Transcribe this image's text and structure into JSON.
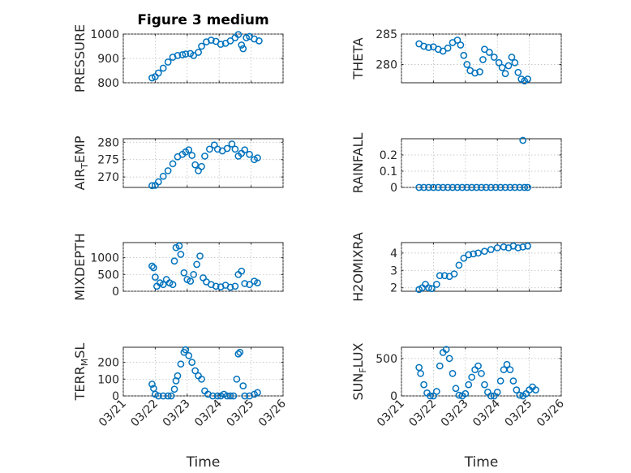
{
  "title": "Figure 3 medium",
  "colors": {
    "marker": "#0072BD",
    "axis": "#262626",
    "grid": "#b8b8b8"
  },
  "chart_data": [
    {
      "id": "pressure",
      "type": "scatter",
      "title": "Figure 3 medium",
      "ylabel": {
        "main": "PRESSURE",
        "sub": "",
        "tail": ""
      },
      "xlabel": "",
      "ylim": [
        800,
        1000
      ],
      "yticks": [
        800,
        900,
        1000
      ],
      "yticklabels": [
        "800",
        "900",
        "1000"
      ],
      "xlim": [
        0,
        5
      ],
      "xticks": [
        0,
        1,
        2,
        3,
        4,
        5
      ],
      "xticklabels": [],
      "grid": true,
      "points": [
        [
          0.9,
          820
        ],
        [
          1.0,
          825
        ],
        [
          1.1,
          840
        ],
        [
          1.25,
          860
        ],
        [
          1.4,
          885
        ],
        [
          1.55,
          905
        ],
        [
          1.7,
          912
        ],
        [
          1.85,
          915
        ],
        [
          1.95,
          918
        ],
        [
          2.1,
          920
        ],
        [
          2.2,
          912
        ],
        [
          2.35,
          925
        ],
        [
          2.45,
          950
        ],
        [
          2.6,
          968
        ],
        [
          2.75,
          975
        ],
        [
          2.9,
          970
        ],
        [
          3.05,
          958
        ],
        [
          3.2,
          962
        ],
        [
          3.35,
          972
        ],
        [
          3.5,
          985
        ],
        [
          3.6,
          998
        ],
        [
          3.7,
          955
        ],
        [
          3.75,
          940
        ],
        [
          3.85,
          985
        ],
        [
          3.95,
          990
        ],
        [
          4.1,
          980
        ],
        [
          4.25,
          972
        ]
      ]
    },
    {
      "id": "theta",
      "type": "scatter",
      "title": "",
      "ylabel": {
        "main": "THETA",
        "sub": "",
        "tail": ""
      },
      "xlabel": "",
      "ylim": [
        277,
        285
      ],
      "yticks": [
        280,
        285
      ],
      "yticklabels": [
        "280",
        "285"
      ],
      "xlim": [
        0,
        5
      ],
      "xticks": [
        0,
        1,
        2,
        3,
        4,
        5
      ],
      "xticklabels": [],
      "grid": true,
      "points": [
        [
          0.55,
          283.4
        ],
        [
          0.7,
          283.0
        ],
        [
          0.85,
          282.8
        ],
        [
          1.0,
          282.9
        ],
        [
          1.15,
          282.5
        ],
        [
          1.3,
          282.2
        ],
        [
          1.45,
          282.7
        ],
        [
          1.6,
          283.6
        ],
        [
          1.75,
          284.0
        ],
        [
          1.85,
          283.2
        ],
        [
          1.95,
          281.5
        ],
        [
          2.05,
          280.0
        ],
        [
          2.15,
          279.0
        ],
        [
          2.3,
          278.6
        ],
        [
          2.45,
          278.8
        ],
        [
          2.55,
          280.8
        ],
        [
          2.6,
          282.5
        ],
        [
          2.75,
          282.0
        ],
        [
          2.9,
          281.2
        ],
        [
          3.05,
          280.3
        ],
        [
          3.15,
          279.5
        ],
        [
          3.25,
          278.5
        ],
        [
          3.35,
          279.8
        ],
        [
          3.45,
          281.2
        ],
        [
          3.55,
          280.3
        ],
        [
          3.65,
          278.7
        ],
        [
          3.75,
          277.6
        ],
        [
          3.85,
          277.3
        ],
        [
          3.95,
          277.6
        ]
      ]
    },
    {
      "id": "air-temp",
      "type": "scatter",
      "title": "",
      "ylabel": {
        "main": "AIR",
        "sub": "T",
        "tail": "EMP"
      },
      "xlabel": "",
      "ylim": [
        267,
        281
      ],
      "yticks": [
        270,
        275,
        280
      ],
      "yticklabels": [
        "270",
        "275",
        "280"
      ],
      "xlim": [
        0,
        5
      ],
      "xticks": [
        0,
        1,
        2,
        3,
        4,
        5
      ],
      "xticklabels": [],
      "grid": true,
      "points": [
        [
          0.9,
          267.5
        ],
        [
          1.0,
          267.6
        ],
        [
          1.1,
          268.6
        ],
        [
          1.25,
          270.2
        ],
        [
          1.4,
          271.8
        ],
        [
          1.55,
          273.8
        ],
        [
          1.7,
          275.8
        ],
        [
          1.85,
          276.5
        ],
        [
          1.95,
          277.2
        ],
        [
          2.05,
          277.8
        ],
        [
          2.15,
          276.2
        ],
        [
          2.25,
          273.5
        ],
        [
          2.35,
          271.8
        ],
        [
          2.45,
          273.0
        ],
        [
          2.55,
          276.0
        ],
        [
          2.7,
          278.0
        ],
        [
          2.85,
          279.2
        ],
        [
          2.95,
          278.0
        ],
        [
          3.1,
          277.5
        ],
        [
          3.25,
          278.2
        ],
        [
          3.4,
          279.5
        ],
        [
          3.5,
          278.0
        ],
        [
          3.6,
          276.0
        ],
        [
          3.7,
          276.8
        ],
        [
          3.8,
          277.8
        ],
        [
          3.95,
          276.5
        ],
        [
          4.1,
          275.0
        ],
        [
          4.2,
          275.5
        ]
      ]
    },
    {
      "id": "rainfall",
      "type": "scatter",
      "title": "",
      "ylabel": {
        "main": "RAINFALL",
        "sub": "",
        "tail": ""
      },
      "xlabel": "",
      "ylim": [
        0,
        0.3
      ],
      "yticks": [
        0,
        0.1,
        0.2
      ],
      "yticklabels": [
        "0",
        "0.1",
        "0.2"
      ],
      "xlim": [
        0,
        5
      ],
      "xticks": [
        0,
        1,
        2,
        3,
        4,
        5
      ],
      "xticklabels": [],
      "grid": true,
      "points": [
        [
          0.55,
          0
        ],
        [
          0.7,
          0
        ],
        [
          0.85,
          0
        ],
        [
          1.0,
          0
        ],
        [
          1.15,
          0
        ],
        [
          1.3,
          0
        ],
        [
          1.45,
          0
        ],
        [
          1.6,
          0
        ],
        [
          1.75,
          0
        ],
        [
          1.9,
          0
        ],
        [
          2.05,
          0
        ],
        [
          2.2,
          0
        ],
        [
          2.35,
          0
        ],
        [
          2.5,
          0
        ],
        [
          2.65,
          0
        ],
        [
          2.8,
          0
        ],
        [
          2.95,
          0
        ],
        [
          3.1,
          0
        ],
        [
          3.25,
          0
        ],
        [
          3.4,
          0
        ],
        [
          3.55,
          0
        ],
        [
          3.7,
          0
        ],
        [
          3.8,
          0.29
        ],
        [
          3.85,
          0
        ],
        [
          3.95,
          0
        ]
      ]
    },
    {
      "id": "mixdepth",
      "type": "scatter",
      "title": "",
      "ylabel": {
        "main": "MIXDEPTH",
        "sub": "",
        "tail": ""
      },
      "xlabel": "",
      "ylim": [
        0,
        1450
      ],
      "yticks": [
        0,
        500,
        1000
      ],
      "yticklabels": [
        "0",
        "500",
        "1000"
      ],
      "xlim": [
        0,
        5
      ],
      "xticks": [
        0,
        1,
        2,
        3,
        4,
        5
      ],
      "xticklabels": [],
      "grid": true,
      "points": [
        [
          0.9,
          750
        ],
        [
          0.95,
          700
        ],
        [
          1.0,
          420
        ],
        [
          1.05,
          150
        ],
        [
          1.15,
          250
        ],
        [
          1.25,
          200
        ],
        [
          1.35,
          350
        ],
        [
          1.45,
          250
        ],
        [
          1.55,
          200
        ],
        [
          1.6,
          900
        ],
        [
          1.65,
          1300
        ],
        [
          1.75,
          1350
        ],
        [
          1.8,
          1100
        ],
        [
          1.9,
          550
        ],
        [
          2.0,
          350
        ],
        [
          2.1,
          300
        ],
        [
          2.2,
          500
        ],
        [
          2.3,
          800
        ],
        [
          2.4,
          1050
        ],
        [
          2.5,
          400
        ],
        [
          2.6,
          280
        ],
        [
          2.75,
          200
        ],
        [
          2.9,
          150
        ],
        [
          3.05,
          130
        ],
        [
          3.2,
          180
        ],
        [
          3.35,
          120
        ],
        [
          3.5,
          150
        ],
        [
          3.6,
          500
        ],
        [
          3.7,
          600
        ],
        [
          3.8,
          230
        ],
        [
          3.95,
          200
        ],
        [
          4.1,
          300
        ],
        [
          4.2,
          250
        ]
      ]
    },
    {
      "id": "h2omixra",
      "type": "scatter",
      "title": "",
      "ylabel": {
        "main": "H2OMIXRA",
        "sub": "",
        "tail": ""
      },
      "xlabel": "",
      "ylim": [
        1.8,
        4.6
      ],
      "yticks": [
        2,
        3,
        4
      ],
      "yticklabels": [
        "2",
        "3",
        "4"
      ],
      "xlim": [
        0,
        5
      ],
      "xticks": [
        0,
        1,
        2,
        3,
        4,
        5
      ],
      "xticklabels": [],
      "grid": true,
      "points": [
        [
          0.55,
          1.9
        ],
        [
          0.65,
          2.0
        ],
        [
          0.75,
          2.2
        ],
        [
          0.85,
          2.0
        ],
        [
          0.95,
          1.95
        ],
        [
          1.1,
          2.2
        ],
        [
          1.2,
          2.7
        ],
        [
          1.35,
          2.7
        ],
        [
          1.5,
          2.65
        ],
        [
          1.65,
          2.8
        ],
        [
          1.8,
          3.3
        ],
        [
          1.95,
          3.7
        ],
        [
          2.1,
          3.9
        ],
        [
          2.25,
          3.95
        ],
        [
          2.4,
          4.0
        ],
        [
          2.6,
          4.1
        ],
        [
          2.8,
          4.2
        ],
        [
          3.0,
          4.3
        ],
        [
          3.2,
          4.35
        ],
        [
          3.35,
          4.3
        ],
        [
          3.5,
          4.4
        ],
        [
          3.65,
          4.3
        ],
        [
          3.8,
          4.35
        ],
        [
          3.95,
          4.4
        ]
      ]
    },
    {
      "id": "terr-msl",
      "type": "scatter",
      "title": "",
      "ylabel": {
        "main": "TERR",
        "sub": "M",
        "tail": "SL"
      },
      "xlabel": "Time",
      "ylim": [
        0,
        290
      ],
      "yticks": [
        0,
        100,
        200
      ],
      "yticklabels": [
        "0",
        "100",
        "200"
      ],
      "xlim": [
        0,
        5
      ],
      "xticks": [
        0,
        1,
        2,
        3,
        4,
        5
      ],
      "xticklabels": [
        "03/21",
        "03/22",
        "03/23",
        "03/24",
        "03/25",
        "03/26"
      ],
      "grid": true,
      "points": [
        [
          0.9,
          70
        ],
        [
          0.95,
          45
        ],
        [
          1.0,
          10
        ],
        [
          1.1,
          0
        ],
        [
          1.25,
          0
        ],
        [
          1.4,
          0
        ],
        [
          1.5,
          0
        ],
        [
          1.6,
          40
        ],
        [
          1.65,
          90
        ],
        [
          1.7,
          120
        ],
        [
          1.8,
          190
        ],
        [
          1.9,
          260
        ],
        [
          1.95,
          275
        ],
        [
          2.05,
          240
        ],
        [
          2.15,
          200
        ],
        [
          2.25,
          150
        ],
        [
          2.35,
          120
        ],
        [
          2.45,
          100
        ],
        [
          2.55,
          30
        ],
        [
          2.65,
          10
        ],
        [
          2.8,
          0
        ],
        [
          2.95,
          0
        ],
        [
          3.05,
          0
        ],
        [
          3.15,
          10
        ],
        [
          3.25,
          0
        ],
        [
          3.35,
          0
        ],
        [
          3.45,
          0
        ],
        [
          3.55,
          100
        ],
        [
          3.6,
          250
        ],
        [
          3.65,
          260
        ],
        [
          3.75,
          60
        ],
        [
          3.8,
          0
        ],
        [
          3.95,
          0
        ],
        [
          4.1,
          10
        ],
        [
          4.2,
          20
        ]
      ]
    },
    {
      "id": "sun-flux",
      "type": "scatter",
      "title": "",
      "ylabel": {
        "main": "SUN",
        "sub": "F",
        "tail": "LUX"
      },
      "xlabel": "Time",
      "ylim": [
        0,
        650
      ],
      "yticks": [
        0,
        500
      ],
      "yticklabels": [
        "0",
        "500"
      ],
      "xlim": [
        0,
        5
      ],
      "xticks": [
        0,
        1,
        2,
        3,
        4,
        5
      ],
      "xticklabels": [
        "03/21",
        "03/22",
        "03/23",
        "03/24",
        "03/25",
        "03/26"
      ],
      "grid": true,
      "points": [
        [
          0.55,
          380
        ],
        [
          0.6,
          300
        ],
        [
          0.7,
          150
        ],
        [
          0.8,
          40
        ],
        [
          0.9,
          0
        ],
        [
          1.0,
          0
        ],
        [
          1.1,
          60
        ],
        [
          1.2,
          400
        ],
        [
          1.3,
          580
        ],
        [
          1.4,
          620
        ],
        [
          1.5,
          500
        ],
        [
          1.6,
          300
        ],
        [
          1.7,
          100
        ],
        [
          1.8,
          10
        ],
        [
          1.9,
          0
        ],
        [
          2.0,
          30
        ],
        [
          2.1,
          150
        ],
        [
          2.2,
          250
        ],
        [
          2.3,
          350
        ],
        [
          2.4,
          400
        ],
        [
          2.5,
          300
        ],
        [
          2.6,
          150
        ],
        [
          2.7,
          50
        ],
        [
          2.8,
          0
        ],
        [
          2.9,
          0
        ],
        [
          3.0,
          50
        ],
        [
          3.1,
          200
        ],
        [
          3.2,
          350
        ],
        [
          3.3,
          420
        ],
        [
          3.4,
          350
        ],
        [
          3.5,
          200
        ],
        [
          3.6,
          80
        ],
        [
          3.7,
          10
        ],
        [
          3.8,
          0
        ],
        [
          3.9,
          30
        ],
        [
          4.0,
          80
        ],
        [
          4.1,
          120
        ],
        [
          4.2,
          80
        ]
      ]
    }
  ]
}
